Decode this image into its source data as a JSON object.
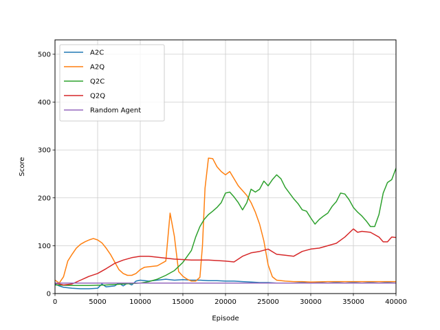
{
  "chart_data": {
    "type": "line",
    "title": "",
    "xlabel": "Episode",
    "ylabel": "Score",
    "xlim": [
      0,
      40000
    ],
    "ylim": [
      0,
      530
    ],
    "xticks": [
      0,
      5000,
      10000,
      15000,
      20000,
      25000,
      30000,
      35000,
      40000
    ],
    "xtick_labels": [
      "0",
      "5000",
      "10000",
      "15000",
      "20000",
      "25000",
      "30000",
      "35000",
      "40000"
    ],
    "yticks": [
      0,
      100,
      200,
      300,
      400,
      500
    ],
    "ytick_labels": [
      "0",
      "100",
      "200",
      "300",
      "400",
      "500"
    ],
    "grid": true,
    "legend_position": "top-left",
    "series": [
      {
        "name": "A2C",
        "color": "#1f77b4",
        "points": [
          [
            0,
            20
          ],
          [
            500,
            16
          ],
          [
            1000,
            13
          ],
          [
            2000,
            11
          ],
          [
            3000,
            10
          ],
          [
            4000,
            10
          ],
          [
            5000,
            11
          ],
          [
            5500,
            20
          ],
          [
            6000,
            14
          ],
          [
            7000,
            16
          ],
          [
            7500,
            22
          ],
          [
            8000,
            16
          ],
          [
            8500,
            22
          ],
          [
            9000,
            18
          ],
          [
            9500,
            26
          ],
          [
            10000,
            28
          ],
          [
            11000,
            26
          ],
          [
            12000,
            28
          ],
          [
            13000,
            30
          ],
          [
            14000,
            28
          ],
          [
            15000,
            29
          ],
          [
            16000,
            28
          ],
          [
            17000,
            28
          ],
          [
            18000,
            27
          ],
          [
            19000,
            27
          ],
          [
            20000,
            26
          ],
          [
            21000,
            26
          ],
          [
            22000,
            25
          ],
          [
            23000,
            24
          ],
          [
            24000,
            23
          ],
          [
            25000,
            23
          ],
          [
            26000,
            22
          ],
          [
            27000,
            22
          ],
          [
            28000,
            22
          ],
          [
            29000,
            23
          ],
          [
            30000,
            22
          ],
          [
            31000,
            23
          ],
          [
            32000,
            22
          ],
          [
            33000,
            23
          ],
          [
            34000,
            22
          ],
          [
            35000,
            23
          ],
          [
            36000,
            22
          ],
          [
            37000,
            23
          ],
          [
            38000,
            22
          ],
          [
            39000,
            23
          ],
          [
            40000,
            22
          ]
        ]
      },
      {
        "name": "A2Q",
        "color": "#ff7f0e",
        "points": [
          [
            0,
            28
          ],
          [
            500,
            22
          ],
          [
            1000,
            35
          ],
          [
            1500,
            68
          ],
          [
            2000,
            82
          ],
          [
            2500,
            95
          ],
          [
            3000,
            103
          ],
          [
            3500,
            108
          ],
          [
            4000,
            112
          ],
          [
            4500,
            115
          ],
          [
            5000,
            112
          ],
          [
            5500,
            106
          ],
          [
            6000,
            95
          ],
          [
            6500,
            82
          ],
          [
            7000,
            66
          ],
          [
            7500,
            50
          ],
          [
            8000,
            42
          ],
          [
            8500,
            38
          ],
          [
            9000,
            38
          ],
          [
            9500,
            42
          ],
          [
            10000,
            50
          ],
          [
            10500,
            55
          ],
          [
            11000,
            56
          ],
          [
            12000,
            58
          ],
          [
            13000,
            68
          ],
          [
            13500,
            168
          ],
          [
            14000,
            120
          ],
          [
            14500,
            46
          ],
          [
            15000,
            36
          ],
          [
            15500,
            30
          ],
          [
            16000,
            26
          ],
          [
            16500,
            26
          ],
          [
            17000,
            34
          ],
          [
            17300,
            100
          ],
          [
            17600,
            220
          ],
          [
            18000,
            283
          ],
          [
            18500,
            282
          ],
          [
            19000,
            265
          ],
          [
            19500,
            255
          ],
          [
            20000,
            248
          ],
          [
            20500,
            255
          ],
          [
            21000,
            240
          ],
          [
            21500,
            225
          ],
          [
            22000,
            215
          ],
          [
            22500,
            205
          ],
          [
            23000,
            190
          ],
          [
            23500,
            170
          ],
          [
            24000,
            145
          ],
          [
            24500,
            110
          ],
          [
            25000,
            60
          ],
          [
            25500,
            35
          ],
          [
            26000,
            28
          ],
          [
            27000,
            26
          ],
          [
            28000,
            25
          ],
          [
            29000,
            25
          ],
          [
            30000,
            24
          ],
          [
            32000,
            25
          ],
          [
            34000,
            25
          ],
          [
            36000,
            25
          ],
          [
            38000,
            25
          ],
          [
            40000,
            25
          ]
        ]
      },
      {
        "name": "Q2C",
        "color": "#2ca02c",
        "points": [
          [
            0,
            18
          ],
          [
            2000,
            17
          ],
          [
            4000,
            17
          ],
          [
            6000,
            18
          ],
          [
            8000,
            20
          ],
          [
            10000,
            22
          ],
          [
            11000,
            25
          ],
          [
            12000,
            30
          ],
          [
            13000,
            38
          ],
          [
            14000,
            48
          ],
          [
            15000,
            65
          ],
          [
            16000,
            90
          ],
          [
            16500,
            118
          ],
          [
            17000,
            140
          ],
          [
            17500,
            155
          ],
          [
            18000,
            165
          ],
          [
            18500,
            172
          ],
          [
            19000,
            180
          ],
          [
            19500,
            190
          ],
          [
            20000,
            210
          ],
          [
            20500,
            212
          ],
          [
            21000,
            202
          ],
          [
            21500,
            190
          ],
          [
            22000,
            175
          ],
          [
            22500,
            190
          ],
          [
            23000,
            218
          ],
          [
            23500,
            212
          ],
          [
            24000,
            218
          ],
          [
            24500,
            235
          ],
          [
            25000,
            225
          ],
          [
            25500,
            238
          ],
          [
            26000,
            248
          ],
          [
            26500,
            240
          ],
          [
            27000,
            222
          ],
          [
            27500,
            210
          ],
          [
            28000,
            198
          ],
          [
            28500,
            188
          ],
          [
            29000,
            175
          ],
          [
            29500,
            172
          ],
          [
            30000,
            158
          ],
          [
            30500,
            145
          ],
          [
            31000,
            155
          ],
          [
            31500,
            162
          ],
          [
            32000,
            168
          ],
          [
            32500,
            182
          ],
          [
            33000,
            192
          ],
          [
            33500,
            210
          ],
          [
            34000,
            208
          ],
          [
            34500,
            196
          ],
          [
            35000,
            180
          ],
          [
            35500,
            170
          ],
          [
            36000,
            162
          ],
          [
            36500,
            152
          ],
          [
            37000,
            140
          ],
          [
            37500,
            140
          ],
          [
            38000,
            165
          ],
          [
            38500,
            210
          ],
          [
            39000,
            232
          ],
          [
            39500,
            238
          ],
          [
            40000,
            262
          ]
        ]
      },
      {
        "name": "Q2Q",
        "color": "#d62728",
        "points": [
          [
            0,
            22
          ],
          [
            1000,
            18
          ],
          [
            2000,
            20
          ],
          [
            3000,
            28
          ],
          [
            4000,
            36
          ],
          [
            5000,
            42
          ],
          [
            6000,
            52
          ],
          [
            7000,
            63
          ],
          [
            8000,
            70
          ],
          [
            9000,
            75
          ],
          [
            10000,
            78
          ],
          [
            11000,
            78
          ],
          [
            12000,
            76
          ],
          [
            13000,
            74
          ],
          [
            14000,
            72
          ],
          [
            16000,
            70
          ],
          [
            18000,
            70
          ],
          [
            20000,
            68
          ],
          [
            21000,
            66
          ],
          [
            22000,
            78
          ],
          [
            23000,
            85
          ],
          [
            24000,
            88
          ],
          [
            25000,
            93
          ],
          [
            26000,
            82
          ],
          [
            27000,
            80
          ],
          [
            28000,
            78
          ],
          [
            29000,
            88
          ],
          [
            30000,
            93
          ],
          [
            31000,
            95
          ],
          [
            32000,
            100
          ],
          [
            33000,
            105
          ],
          [
            34000,
            118
          ],
          [
            35000,
            135
          ],
          [
            35500,
            128
          ],
          [
            36000,
            130
          ],
          [
            37000,
            128
          ],
          [
            38000,
            118
          ],
          [
            38500,
            108
          ],
          [
            39000,
            108
          ],
          [
            39500,
            118
          ],
          [
            40000,
            117
          ]
        ]
      },
      {
        "name": "Random Agent",
        "color": "#9467bd",
        "points": [
          [
            0,
            22
          ],
          [
            10000,
            22
          ],
          [
            20000,
            22
          ],
          [
            30000,
            22
          ],
          [
            40000,
            22
          ]
        ]
      }
    ]
  }
}
